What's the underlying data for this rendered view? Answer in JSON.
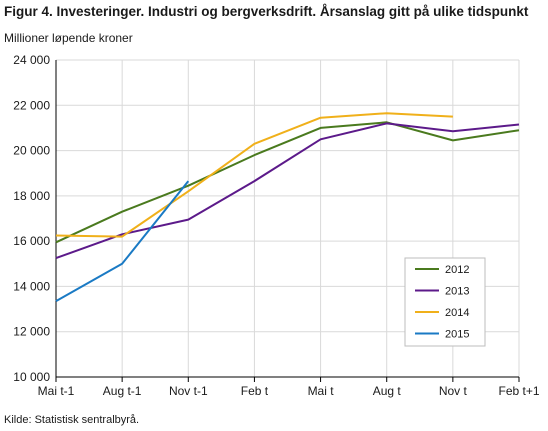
{
  "chart_data": {
    "type": "line",
    "title": "Figur 4. Investeringer. Industri og bergverksdrift. Årsanslag gitt på ulike tidspunkt",
    "ylabel": "Millioner løpende kroner",
    "xlabel": "",
    "source": "Kilde: Statistisk sentralbyrå.",
    "categories": [
      "Mai t-1",
      "Aug t-1",
      "Nov t-1",
      "Feb t",
      "Mai t",
      "Aug t",
      "Nov t",
      "Feb t+1"
    ],
    "ylim": [
      10000,
      24000
    ],
    "yticks": [
      10000,
      12000,
      14000,
      16000,
      18000,
      20000,
      22000,
      24000
    ],
    "ytick_labels": [
      "10 000",
      "12 000",
      "14 000",
      "16 000",
      "18 000",
      "20 000",
      "22 000",
      "24 000"
    ],
    "grid": true,
    "legend_position": "lower-right",
    "series": [
      {
        "name": "2012",
        "color": "#4a7a1e",
        "values": [
          15950,
          17300,
          18450,
          19800,
          21000,
          21250,
          20450,
          20900
        ]
      },
      {
        "name": "2013",
        "color": "#5c1a8a",
        "values": [
          15250,
          16300,
          16950,
          18650,
          20500,
          21200,
          20850,
          21150
        ]
      },
      {
        "name": "2014",
        "color": "#f0b01a",
        "values": [
          16250,
          16200,
          18200,
          20300,
          21450,
          21650,
          21500,
          null
        ]
      },
      {
        "name": "2015",
        "color": "#1a7ac4",
        "values": [
          13350,
          15000,
          18650,
          null,
          null,
          null,
          null,
          null
        ]
      }
    ]
  }
}
